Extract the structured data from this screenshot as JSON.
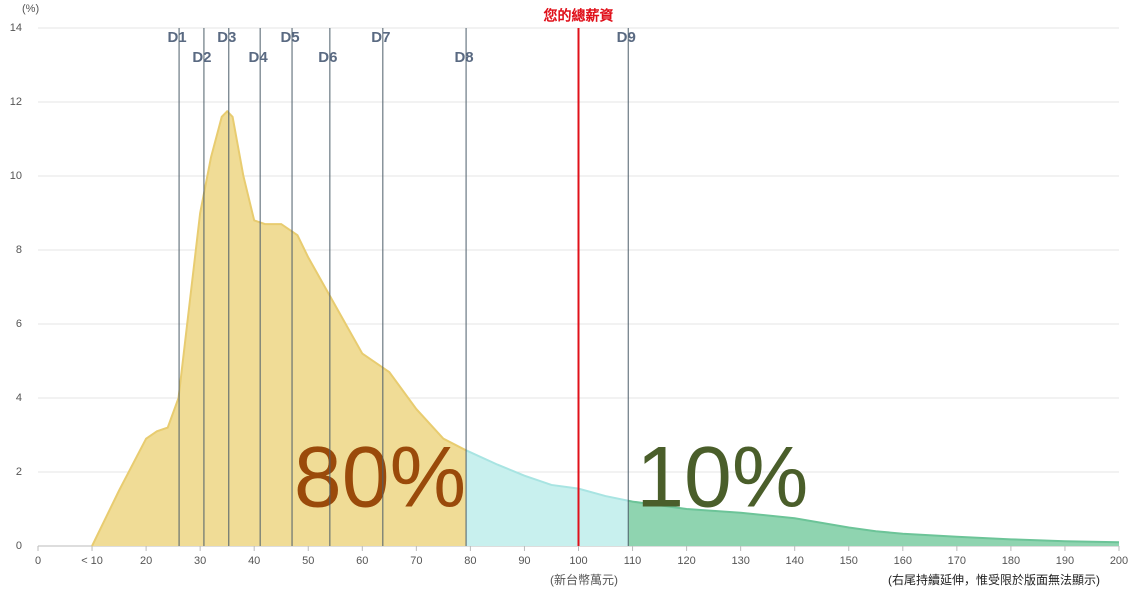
{
  "chart_data": {
    "type": "area",
    "y_unit_label": "(%)",
    "x_axis_label": "(新台幣萬元)",
    "note": "(右尾持續延伸，惟受限於版面無法顯示)",
    "x": [
      10,
      15,
      20,
      22,
      24,
      26,
      28,
      30,
      32,
      34,
      35,
      36,
      38,
      40,
      42,
      45,
      48,
      50,
      55,
      60,
      65,
      70,
      75,
      79,
      85,
      90,
      95,
      100,
      105,
      110,
      120,
      130,
      140,
      150,
      155,
      160,
      170,
      180,
      190,
      200
    ],
    "values": [
      0,
      1.5,
      2.9,
      3.1,
      3.2,
      4,
      6.5,
      9,
      10.5,
      11.6,
      11.75,
      11.6,
      10,
      8.8,
      8.7,
      8.7,
      8.4,
      7.8,
      6.5,
      5.2,
      4.7,
      3.7,
      2.9,
      2.6,
      2.2,
      1.9,
      1.65,
      1.55,
      1.35,
      1.2,
      1.0,
      0.9,
      0.75,
      0.5,
      0.4,
      0.33,
      0.25,
      0.18,
      0.13,
      0.1
    ],
    "xlim": [
      0,
      200
    ],
    "xticks": [
      0,
      {
        "value": 10,
        "label": "< 10"
      },
      20,
      30,
      40,
      50,
      60,
      70,
      80,
      90,
      100,
      110,
      120,
      130,
      140,
      150,
      160,
      170,
      180,
      190,
      200
    ],
    "ylim": [
      0,
      14
    ],
    "yticks": [
      0,
      2,
      4,
      6,
      8,
      10,
      12,
      14
    ],
    "grid": true,
    "deciles": [
      {
        "name": "D1",
        "value": 26.1
      },
      {
        "name": "D2",
        "value": 30.7
      },
      {
        "name": "D3",
        "value": 35.3
      },
      {
        "name": "D4",
        "value": 41.1
      },
      {
        "name": "D5",
        "value": 47
      },
      {
        "name": "D6",
        "value": 54
      },
      {
        "name": "D7",
        "value": 63.8
      },
      {
        "name": "D8",
        "value": 79.2
      },
      {
        "name": "D9",
        "value": 109.2
      }
    ],
    "marker": {
      "label": "您的總薪資",
      "value": 100,
      "color": "#e0101a"
    },
    "region_colors": [
      "#f0dc96",
      "#c8f0ee",
      "#8fd4b0"
    ],
    "region_edge_colors": [
      "#e8cc70",
      "#a8e4e2",
      "#6cc498"
    ],
    "region_labels": [
      {
        "text": "80%",
        "color": "#9a4a0a"
      },
      {
        "text": "10%",
        "color": "#4a5e2a"
      }
    ]
  }
}
